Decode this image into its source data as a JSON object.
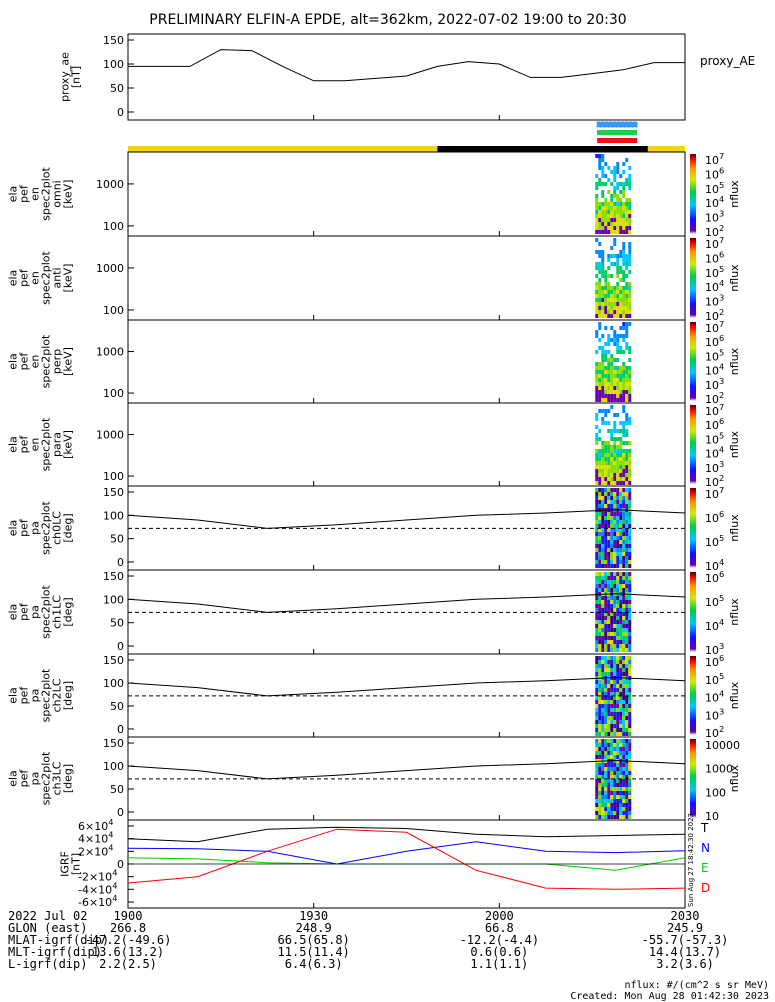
{
  "title": "PRELIMINARY ELFIN-A EPDE, alt=362km, 2022-07-02 19:00 to 20:30",
  "chart_data": {
    "type": "line",
    "panels": [
      {
        "id": "proxy_ae",
        "ylabel": [
          "proxy_ae",
          "[nT]"
        ],
        "legend": "proxy_AE",
        "yticks": [
          "150",
          "100",
          "50",
          "0"
        ],
        "ylim": [
          0,
          150
        ],
        "x_min": [
          0,
          5,
          10,
          15,
          20,
          25,
          30,
          35,
          40,
          45,
          50,
          55,
          60,
          65,
          70,
          75,
          80,
          85,
          90
        ],
        "values": [
          95,
          95,
          95,
          130,
          128,
          95,
          65,
          65,
          70,
          75,
          95,
          105,
          100,
          72,
          72,
          80,
          88,
          103,
          103
        ]
      },
      {
        "id": "omni",
        "ylabel": [
          "ela",
          "pef",
          "en",
          "spec2plot",
          "omni",
          "[keV]"
        ],
        "yticks": [
          "1000",
          "100"
        ],
        "cbar_ticks": [
          "10^7",
          "10^6",
          "10^5",
          "10^4",
          "10^3",
          "10^2"
        ],
        "cbar_label": "nflux"
      },
      {
        "id": "anti",
        "ylabel": [
          "ela",
          "pef",
          "en",
          "spec2plot",
          "anti",
          "[keV]"
        ],
        "yticks": [
          "1000",
          "100"
        ],
        "cbar_ticks": [
          "10^7",
          "10^6",
          "10^5",
          "10^4",
          "10^3",
          "10^2"
        ],
        "cbar_label": "nflux"
      },
      {
        "id": "perp",
        "ylabel": [
          "ela",
          "pef",
          "en",
          "spec2plot",
          "perp",
          "[keV]"
        ],
        "yticks": [
          "1000",
          "100"
        ],
        "cbar_ticks": [
          "10^7",
          "10^6",
          "10^5",
          "10^4",
          "10^3",
          "10^2"
        ],
        "cbar_label": "nflux"
      },
      {
        "id": "para",
        "ylabel": [
          "ela",
          "pef",
          "en",
          "spec2plot",
          "para",
          "[keV]"
        ],
        "yticks": [
          "1000",
          "100"
        ],
        "cbar_ticks": [
          "10^7",
          "10^6",
          "10^5",
          "10^4",
          "10^3",
          "10^2"
        ],
        "cbar_label": "nflux"
      },
      {
        "id": "ch0LC",
        "ylabel": [
          "ela",
          "pef",
          "pa",
          "spec2plot",
          "ch0LC",
          "[deg]"
        ],
        "yticks": [
          "150",
          "100",
          "50",
          "0"
        ],
        "cbar_ticks": [
          "10^7",
          "10^6",
          "10^5",
          "10^4"
        ],
        "cbar_label": "nflux"
      },
      {
        "id": "ch1LC",
        "ylabel": [
          "ela",
          "pef",
          "pa",
          "spec2plot",
          "ch1LC",
          "[deg]"
        ],
        "yticks": [
          "150",
          "100",
          "50",
          "0"
        ],
        "cbar_ticks": [
          "10^6",
          "10^5",
          "10^4",
          "10^3"
        ],
        "cbar_label": "nflux"
      },
      {
        "id": "ch2LC",
        "ylabel": [
          "ela",
          "pef",
          "pa",
          "spec2plot",
          "ch2LC",
          "[deg]"
        ],
        "yticks": [
          "150",
          "100",
          "50",
          "0"
        ],
        "cbar_ticks": [
          "10^6",
          "10^5",
          "10^4",
          "10^3",
          "10^2"
        ],
        "cbar_label": "nflux"
      },
      {
        "id": "ch3LC",
        "ylabel": [
          "ela",
          "pef",
          "pa",
          "spec2plot",
          "ch3LC",
          "[deg]"
        ],
        "yticks": [
          "150",
          "100",
          "50",
          "0"
        ],
        "cbar_ticks": [
          "10000",
          "1000",
          "100",
          "10"
        ],
        "cbar_label": "nflux"
      },
      {
        "id": "igrf",
        "ylabel": [
          "IGRF",
          "[nT]"
        ],
        "yticks": [
          "6×10^4",
          "4×10^4",
          "2×10^4",
          "0",
          "-2×10^4",
          "-4×10^4",
          "-6×10^4"
        ],
        "legend": [
          "T",
          "N",
          "E",
          "D"
        ],
        "legend_colors": [
          "#000000",
          "#0000ff",
          "#00cc00",
          "#ff0000"
        ]
      }
    ],
    "x_tick_labels": [
      "1900",
      "1930",
      "2000",
      "2030"
    ],
    "pa_losscone_deg": [
      100,
      90,
      72,
      80,
      90,
      100,
      105,
      112,
      105
    ],
    "pa_dashed_deg": 72,
    "igrf_T": [
      40000,
      35000,
      55000,
      58000,
      56000,
      47000,
      43000,
      45000,
      47000
    ],
    "igrf_N": [
      25000,
      24000,
      20000,
      0,
      20000,
      35000,
      20000,
      18000,
      21000
    ],
    "igrf_E": [
      10000,
      8000,
      2000,
      0,
      0,
      0,
      0,
      -10000,
      10000
    ],
    "igrf_D": [
      -30000,
      -20000,
      20000,
      55000,
      50000,
      -10000,
      -38000,
      -40000,
      -38000
    ]
  },
  "footer": {
    "rows": [
      {
        "label": "2022 Jul 02",
        "values": [
          "1900",
          "1930",
          "2000",
          "2030"
        ]
      },
      {
        "label": "GLON (east)",
        "values": [
          "266.8",
          "248.9",
          "66.8",
          "245.9"
        ]
      },
      {
        "label": "MLAT-igrf(dip)",
        "values": [
          "-47.2(-49.6)",
          "66.5(65.8)",
          "-12.2(-4.4)",
          "-55.7(-57.3)"
        ]
      },
      {
        "label": "MLT-igrf(dip)",
        "values": [
          "13.6(13.2)",
          "11.5(11.4)",
          "0.6(0.6)",
          "14.4(13.7)"
        ]
      },
      {
        "label": "L-igrf(dip)",
        "values": [
          "2.2(2.5)",
          "6.4(6.3)",
          "1.1(1.1)",
          "3.2(3.6)"
        ]
      }
    ],
    "units_note": "nflux: #/(cm^2 s sr MeV)",
    "created": "Created: Mon Aug 28 01:42:30 2023",
    "side_stamp": "Sun Aug 27 18:42:30 2023"
  },
  "colors": {
    "day_bar": "#f5d020",
    "night_bar": "#000000",
    "sci_blue": "#3399ff",
    "sci_green": "#22cc44",
    "sci_red": "#ee1111"
  }
}
